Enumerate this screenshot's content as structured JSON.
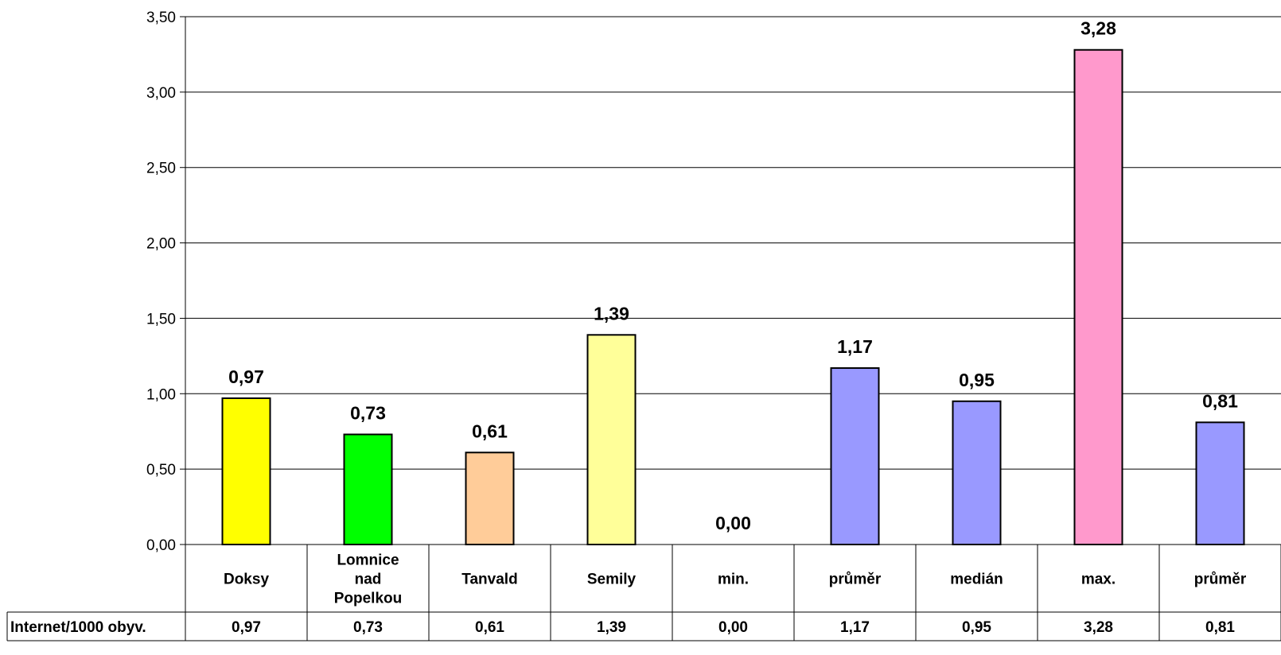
{
  "chart_data": {
    "type": "bar",
    "title": "",
    "xlabel": "",
    "ylabel": "",
    "ylim": [
      0,
      3.5
    ],
    "y_ticks": [
      "0,00",
      "0,50",
      "1,00",
      "1,50",
      "2,00",
      "2,50",
      "3,00",
      "3,50"
    ],
    "y_tick_values": [
      0,
      0.5,
      1,
      1.5,
      2,
      2.5,
      3,
      3.5
    ],
    "grid": true,
    "categories": [
      [
        "Doksy"
      ],
      [
        "Lomnice",
        "nad",
        "Popelkou"
      ],
      [
        "Tanvald"
      ],
      [
        "Semily"
      ],
      [
        "min."
      ],
      [
        "průměr"
      ],
      [
        "medián"
      ],
      [
        "max."
      ],
      [
        "průměr"
      ]
    ],
    "series": [
      {
        "name": "Internet/1000 obyv.",
        "values": [
          0.97,
          0.73,
          0.61,
          1.39,
          0.0,
          1.17,
          0.95,
          3.28,
          0.81
        ],
        "labels": [
          "0,97",
          "0,73",
          "0,61",
          "1,39",
          "0,00",
          "1,17",
          "0,95",
          "3,28",
          "0,81"
        ]
      }
    ],
    "bar_colors": [
      "#ffff00",
      "#00ff00",
      "#ffcc99",
      "#ffff99",
      "#9999ff",
      "#9999ff",
      "#9999ff",
      "#ff99cc",
      "#9999ff"
    ],
    "legend": "data-table"
  }
}
